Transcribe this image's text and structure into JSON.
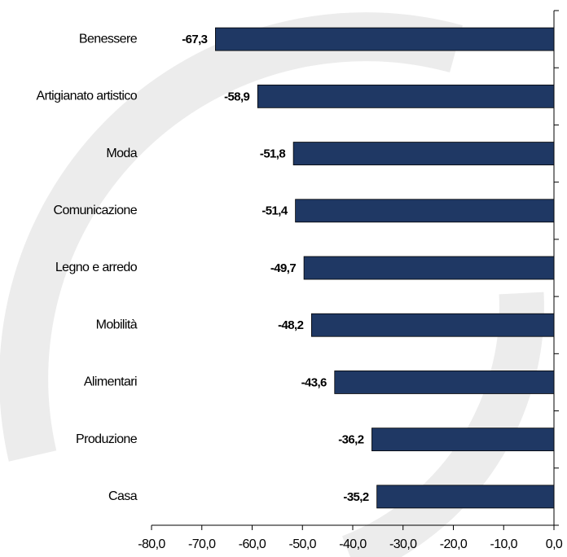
{
  "chart_data": {
    "type": "bar",
    "orientation": "horizontal",
    "categories": [
      "Benessere",
      "Artigianato artistico",
      "Moda",
      "Comunicazione",
      "Legno e arredo",
      "Mobilità",
      "Alimentari",
      "Produzione",
      "Casa"
    ],
    "values": [
      -67.3,
      -58.9,
      -51.8,
      -51.4,
      -49.7,
      -48.2,
      -43.6,
      -36.2,
      -35.2
    ],
    "value_labels": [
      "-67,3",
      "-58,9",
      "-51,8",
      "-51,4",
      "-49,7",
      "-48,2",
      "-43,6",
      "-36,2",
      "-35,2"
    ],
    "color": "#1f3864",
    "xlim": [
      -80,
      0
    ],
    "xticks": [
      {
        "value": -80,
        "label": "-80,0"
      },
      {
        "value": -70,
        "label": "-70,0"
      },
      {
        "value": -60,
        "label": "-60,0"
      },
      {
        "value": -50,
        "label": "-50,0"
      },
      {
        "value": -40,
        "label": "-40,0"
      },
      {
        "value": -30,
        "label": "-30,0"
      },
      {
        "value": -20,
        "label": "-20,0"
      },
      {
        "value": -10,
        "label": "-10,0"
      },
      {
        "value": 0,
        "label": "0,0"
      }
    ],
    "grid": false
  }
}
